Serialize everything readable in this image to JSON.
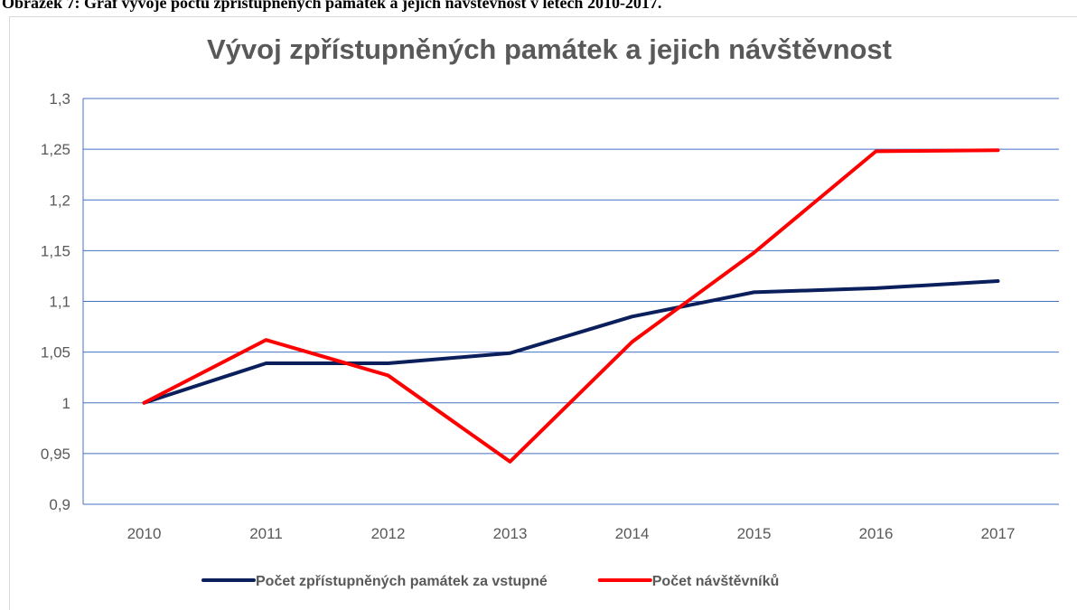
{
  "caption": "Obrázek 7: Graf vývoje počtu zpřístupněných památek a jejich návštěvnost v letech 2010-2017.",
  "chart_data": {
    "type": "line",
    "title": "Vývoj zpřístupněných památek a jejich návštěvnost",
    "categories": [
      "2010",
      "2011",
      "2012",
      "2013",
      "2014",
      "2015",
      "2016",
      "2017"
    ],
    "series": [
      {
        "name": "Počet zpřístupněných památek za vstupné",
        "color": "#0b1f5c",
        "values": [
          1.0,
          1.039,
          1.039,
          1.049,
          1.085,
          1.109,
          1.113,
          1.12
        ]
      },
      {
        "name": "Počet návštěvníků",
        "color": "#ff0000",
        "values": [
          1.0,
          1.062,
          1.027,
          0.942,
          1.06,
          1.148,
          1.248,
          1.249
        ]
      }
    ],
    "ylim": [
      0.9,
      1.3
    ],
    "yticks": [
      {
        "value": 0.9,
        "label": "0,9"
      },
      {
        "value": 0.95,
        "label": "0,95"
      },
      1,
      {
        "value": 1.05,
        "label": "1,05"
      },
      {
        "value": 1.1,
        "label": "1,1"
      },
      {
        "value": 1.15,
        "label": "1,15"
      },
      {
        "value": 1.2,
        "label": "1,2"
      },
      {
        "value": 1.25,
        "label": "1,25"
      },
      {
        "value": 1.3,
        "label": "1,3"
      }
    ],
    "grid": true,
    "legend": "bottom"
  }
}
